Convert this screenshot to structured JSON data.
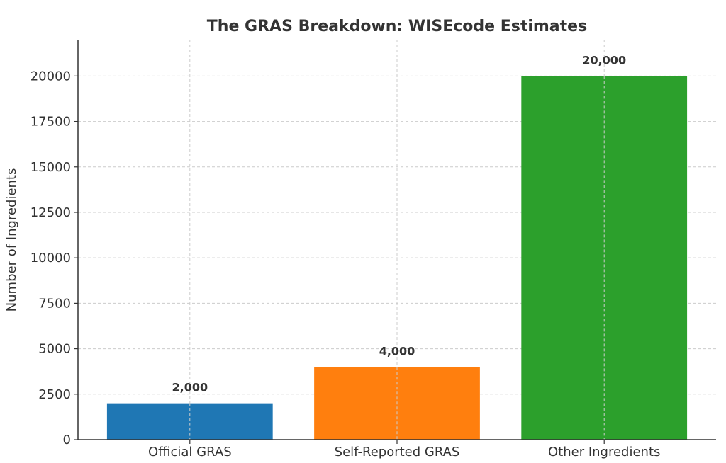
{
  "chart_data": {
    "type": "bar",
    "title": "The GRAS Breakdown: WISEcode Estimates",
    "xlabel": "",
    "ylabel": "Number of Ingredients",
    "categories": [
      "Official GRAS",
      "Self-Reported GRAS",
      "Other Ingredients"
    ],
    "values": [
      2000,
      4000,
      20000
    ],
    "data_labels": [
      "2,000",
      "4,000",
      "20,000"
    ],
    "colors": [
      "#1f77b4",
      "#ff7f0e",
      "#2ca02c"
    ],
    "ylim": [
      0,
      22000
    ],
    "yticks": [
      0,
      2500,
      5000,
      7500,
      10000,
      12500,
      15000,
      17500,
      20000
    ],
    "ytick_labels": [
      "0",
      "2500",
      "5000",
      "7500",
      "10000",
      "12500",
      "15000",
      "17500",
      "20000"
    ],
    "grid": true
  }
}
